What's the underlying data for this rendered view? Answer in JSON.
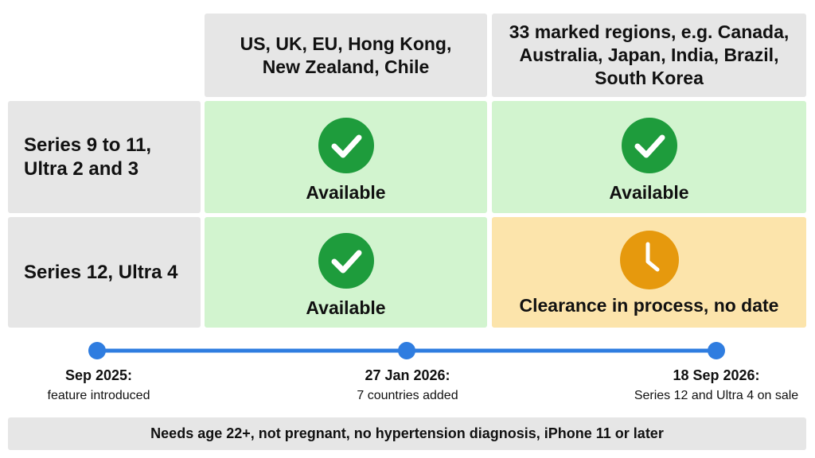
{
  "table": {
    "columns": [
      "US, UK, EU, Hong Kong, New Zealand, Chile",
      "33 marked regions, e.g. Canada, Australia, Japan, India, Brazil, South Korea"
    ],
    "rows": [
      {
        "label": "Series 9 to 11, Ultra 2 and 3",
        "cells": [
          "Available",
          "Available"
        ]
      },
      {
        "label": "Series 12, Ultra 4",
        "cells": [
          "Available",
          "Clearance in process, no date"
        ]
      }
    ]
  },
  "timeline": [
    {
      "date": "Sep 2025:",
      "text": "feature introduced"
    },
    {
      "date": "27 Jan 2026:",
      "text": "7 countries added"
    },
    {
      "date": "18 Sep 2026:",
      "text": "Series 12 and Ultra 4 on sale"
    }
  ],
  "footer": "Needs age 22+, not pregnant, no hypertension diagnosis, iPhone 11 or later"
}
